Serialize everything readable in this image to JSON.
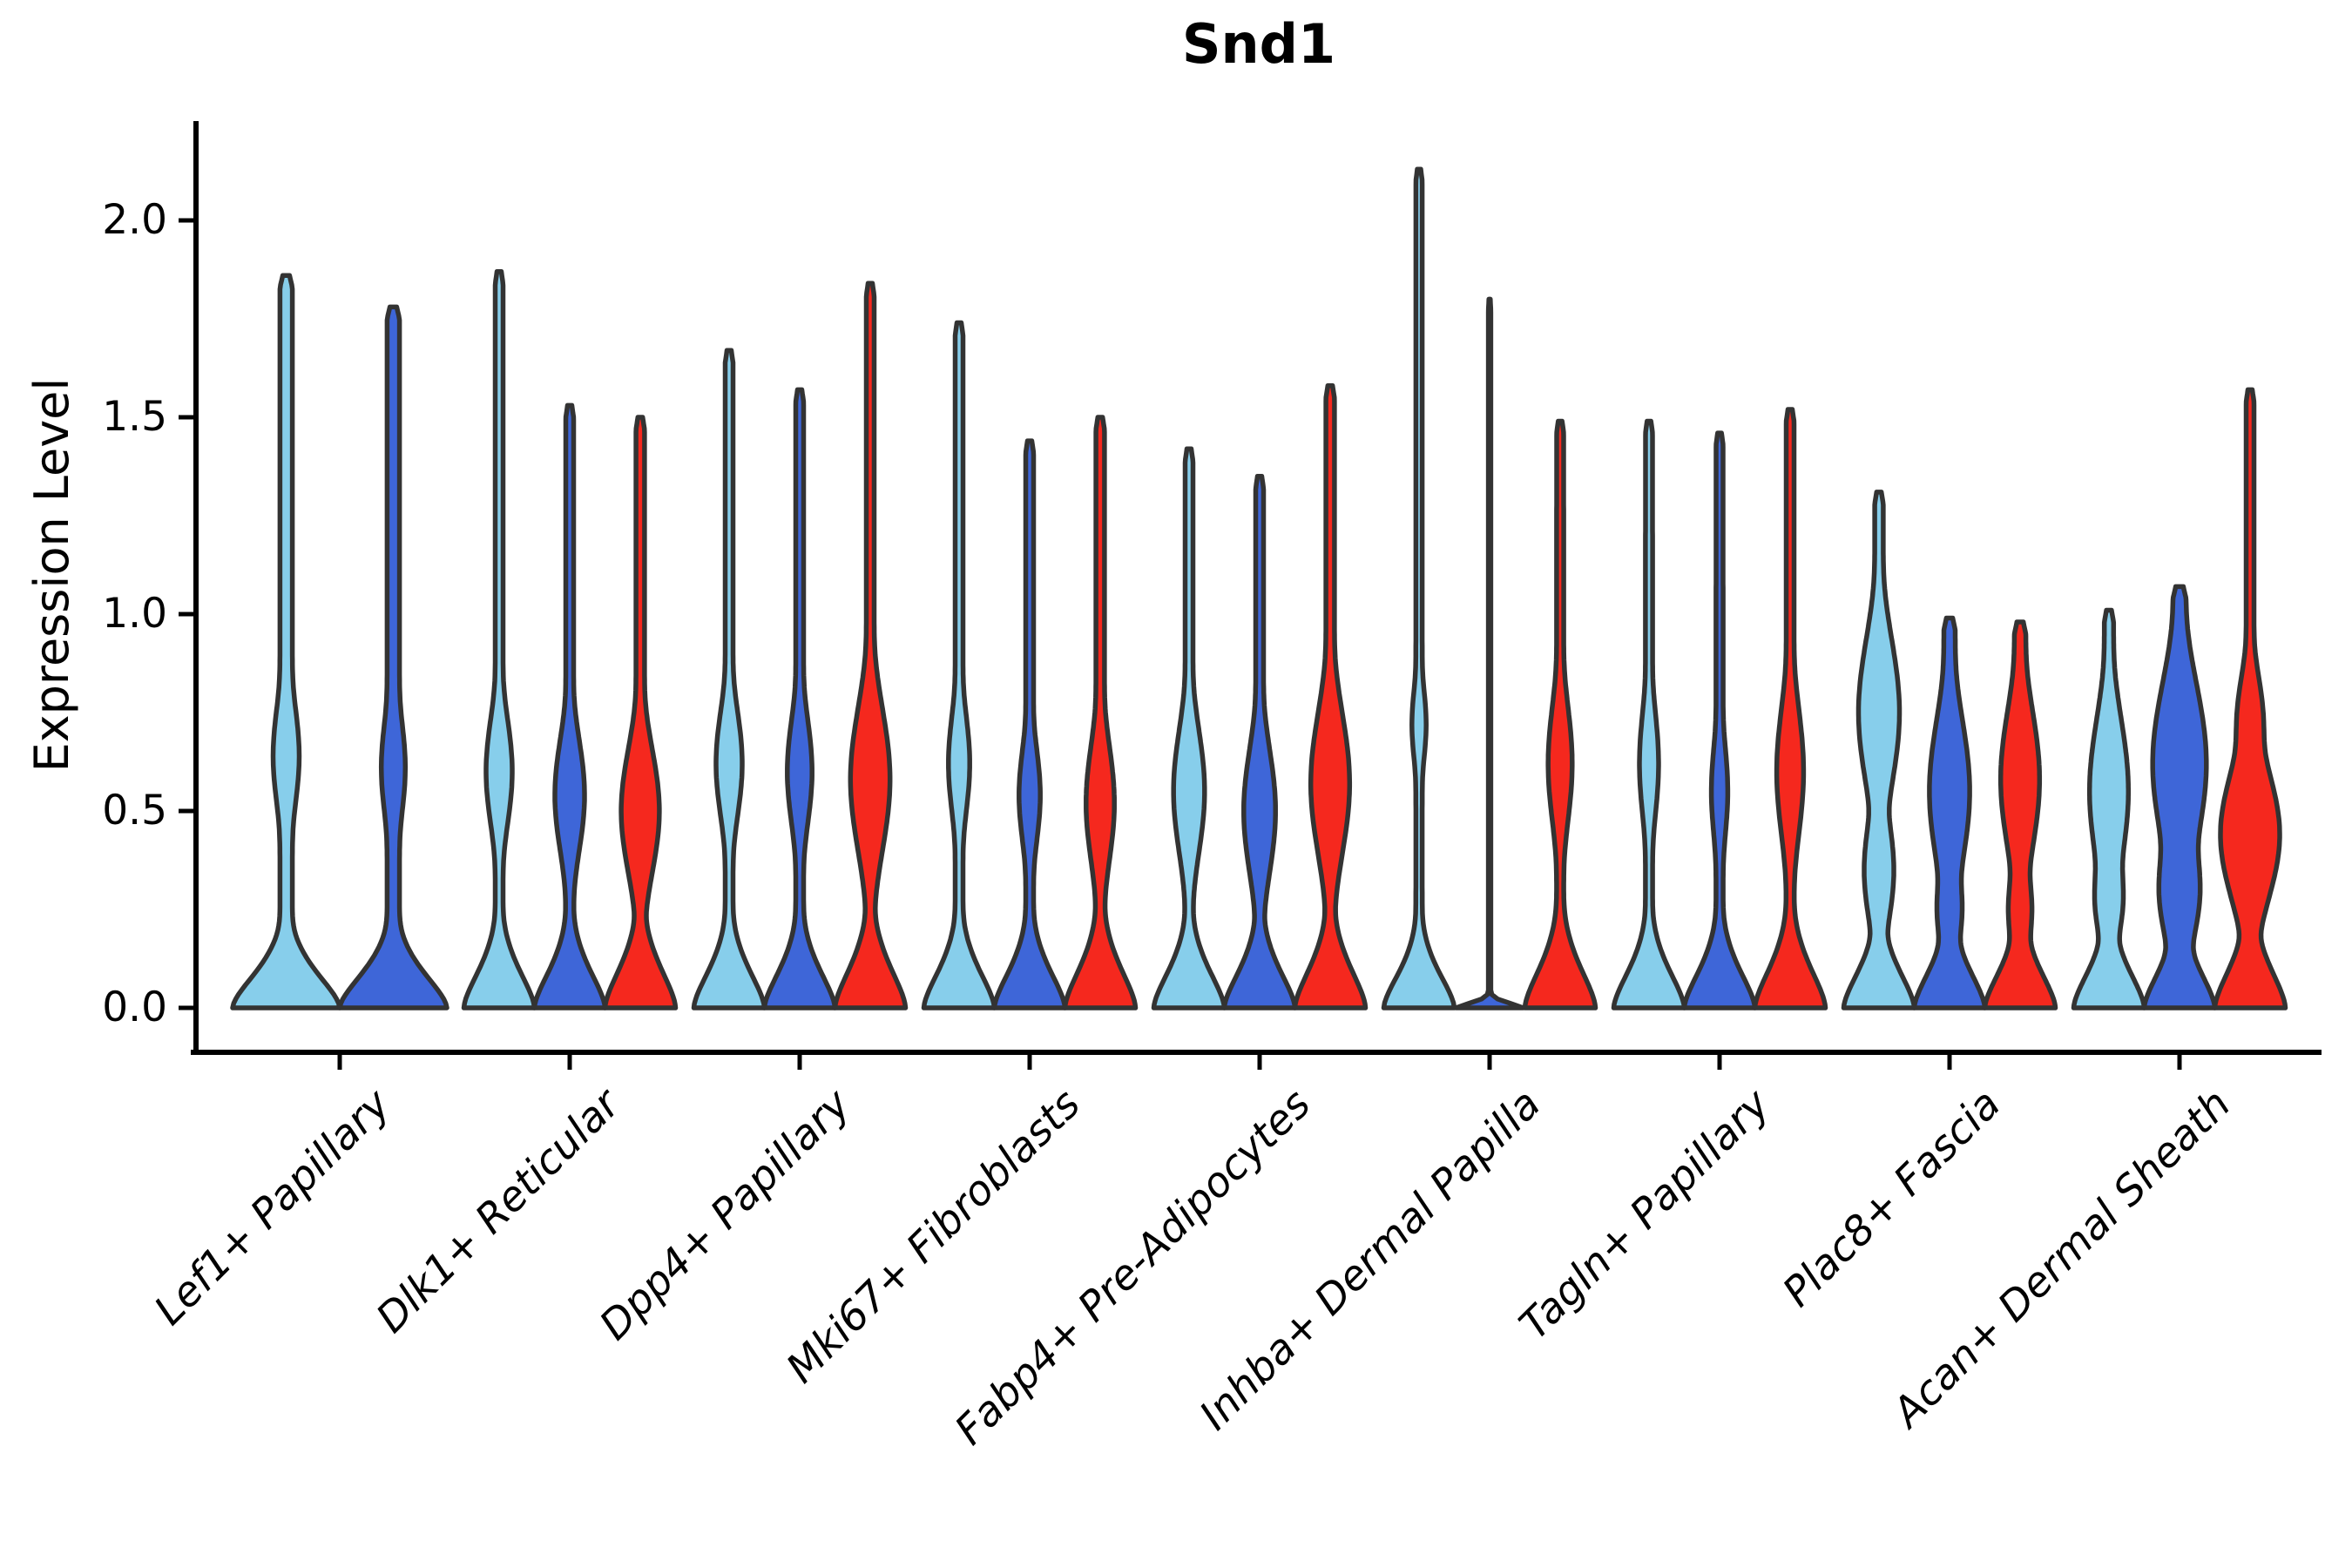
{
  "chart_data": {
    "type": "violin",
    "title": "Snd1",
    "ylabel": "Expression Level",
    "xlabel": "",
    "y_ticks": [
      0.0,
      0.5,
      1.0,
      1.5,
      2.0
    ],
    "y_tick_labels": [
      "0.0",
      "0.5",
      "1.0",
      "1.5",
      "2.0"
    ],
    "ylim": [
      -0.11,
      2.25
    ],
    "grid": false,
    "legend": "none",
    "categories": [
      "Lef1+ Papillary",
      "Dlk1+ Reticular",
      "Dpp4+ Papillary",
      "Mki67+ Fibroblasts",
      "Fabp4+ Pre-Adipocytes",
      "Inhba+ Dermal Papilla",
      "Tagln+ Papillary",
      "Plac8+ Fascia",
      "Acan+ Dermal Sheath"
    ],
    "split_colors": [
      "#87CEEB",
      "#3E66D8",
      "#F5281E"
    ],
    "outline_color": "#333333",
    "groups": [
      {
        "category": "Lef1+ Papillary",
        "violins": [
          {
            "split": 0,
            "max_expression": 1.86,
            "bulges": [
              [
                0.64,
                0.2,
                0.24
              ]
            ],
            "tail": 0.115,
            "base": [
              1,
              0.13
            ]
          },
          {
            "split": 1,
            "max_expression": 1.78,
            "bulges": [
              [
                0.61,
                0.19,
                0.22
              ]
            ],
            "tail": 0.115,
            "base": [
              1,
              0.13
            ]
          }
        ]
      },
      {
        "category": "Dlk1+ Reticular",
        "violins": [
          {
            "split": 0,
            "max_expression": 1.87,
            "bulges": [
              [
                0.6,
                0.2,
                0.37
              ]
            ],
            "tail": 0.11,
            "base": [
              1,
              0.14
            ]
          },
          {
            "split": 1,
            "max_expression": 1.53,
            "bulges": [
              [
                0.54,
                0.21,
                0.42
              ]
            ],
            "tail": 0.11,
            "base": [
              1,
              0.14
            ]
          },
          {
            "split": 2,
            "max_expression": 1.5,
            "bulges": [
              [
                0.5,
                0.23,
                0.54
              ]
            ],
            "tail": 0.12,
            "base": [
              1,
              0.15
            ]
          }
        ]
      },
      {
        "category": "Dpp4+ Papillary",
        "violins": [
          {
            "split": 0,
            "max_expression": 1.67,
            "bulges": [
              [
                0.62,
                0.2,
                0.37
              ]
            ],
            "tail": 0.11,
            "base": [
              1,
              0.14
            ]
          },
          {
            "split": 1,
            "max_expression": 1.57,
            "bulges": [
              [
                0.6,
                0.2,
                0.35
              ]
            ],
            "tail": 0.11,
            "base": [
              1,
              0.14
            ]
          },
          {
            "split": 2,
            "max_expression": 1.84,
            "bulges": [
              [
                0.58,
                0.26,
                0.56
              ]
            ],
            "tail": 0.11,
            "base": [
              1,
              0.15
            ]
          }
        ]
      },
      {
        "category": "Mki67+ Fibroblasts",
        "violins": [
          {
            "split": 0,
            "max_expression": 1.74,
            "bulges": [
              [
                0.62,
                0.19,
                0.3
              ]
            ],
            "tail": 0.11,
            "base": [
              1,
              0.14
            ]
          },
          {
            "split": 1,
            "max_expression": 1.44,
            "bulges": [
              [
                0.54,
                0.18,
                0.3
              ]
            ],
            "tail": 0.11,
            "base": [
              1,
              0.14
            ]
          },
          {
            "split": 2,
            "max_expression": 1.5,
            "bulges": [
              [
                0.52,
                0.22,
                0.4
              ]
            ],
            "tail": 0.12,
            "base": [
              1,
              0.15
            ]
          }
        ]
      },
      {
        "category": "Fabp4+ Pre-Adipocytes",
        "violins": [
          {
            "split": 0,
            "max_expression": 1.42,
            "bulges": [
              [
                0.55,
                0.23,
                0.44
              ]
            ],
            "tail": 0.11,
            "base": [
              1,
              0.14
            ]
          },
          {
            "split": 1,
            "max_expression": 1.35,
            "bulges": [
              [
                0.5,
                0.23,
                0.45
              ]
            ],
            "tail": 0.11,
            "base": [
              1,
              0.14
            ]
          },
          {
            "split": 2,
            "max_expression": 1.58,
            "bulges": [
              [
                0.57,
                0.26,
                0.55
              ]
            ],
            "tail": 0.12,
            "base": [
              1,
              0.15
            ]
          }
        ]
      },
      {
        "category": "Inhba+ Dermal Papilla",
        "violins": [
          {
            "split": 0,
            "max_expression": 2.13,
            "bulges": [
              [
                0.72,
                0.14,
                0.2
              ]
            ],
            "tail": 0.09,
            "base": [
              1,
              0.13
            ]
          },
          {
            "split": 1,
            "max_expression": 1.8,
            "bulges": [],
            "tail": 0.035,
            "base": [
              0.95,
              0.018
            ]
          },
          {
            "split": 2,
            "max_expression": 1.49,
            "bulges": [
              [
                0.62,
                0.22,
                0.34
              ]
            ],
            "tail": 0.1,
            "base": [
              1,
              0.15
            ]
          }
        ]
      },
      {
        "category": "Tagln+ Papillary",
        "violins": [
          {
            "split": 0,
            "max_expression": 1.49,
            "bulges": [
              [
                0.62,
                0.2,
                0.27
              ]
            ],
            "tail": 0.1,
            "base": [
              1,
              0.14
            ]
          },
          {
            "split": 1,
            "max_expression": 1.46,
            "bulges": [
              [
                0.55,
                0.18,
                0.23
              ]
            ],
            "tail": 0.1,
            "base": [
              1,
              0.14
            ]
          },
          {
            "split": 2,
            "max_expression": 1.52,
            "bulges": [
              [
                0.6,
                0.24,
                0.38
              ]
            ],
            "tail": 0.11,
            "base": [
              1,
              0.15
            ]
          }
        ]
      },
      {
        "category": "Plac8+ Fascia",
        "violins": [
          {
            "split": 0,
            "max_expression": 1.31,
            "bulges": [
              [
                0.75,
                0.27,
                0.58
              ],
              [
                0.35,
                0.2,
                0.42
              ]
            ],
            "tail": 0.12,
            "base": [
              1,
              0.14
            ]
          },
          {
            "split": 1,
            "max_expression": 0.99,
            "bulges": [
              [
                0.55,
                0.27,
                0.57
              ],
              [
                0.25,
                0.15,
                0.35
              ]
            ],
            "tail": 0.16,
            "base": [
              1,
              0.14
            ]
          },
          {
            "split": 2,
            "max_expression": 0.98,
            "bulges": [
              [
                0.58,
                0.26,
                0.55
              ],
              [
                0.25,
                0.15,
                0.33
              ]
            ],
            "tail": 0.16,
            "base": [
              1,
              0.14
            ]
          }
        ]
      },
      {
        "category": "Acan+ Dermal Sheath",
        "violins": [
          {
            "split": 0,
            "max_expression": 1.01,
            "bulges": [
              [
                0.55,
                0.27,
                0.55
              ],
              [
                0.28,
                0.16,
                0.4
              ]
            ],
            "tail": 0.13,
            "base": [
              1,
              0.14
            ]
          },
          {
            "split": 1,
            "max_expression": 1.07,
            "bulges": [
              [
                0.62,
                0.3,
                0.76
              ],
              [
                0.3,
                0.2,
                0.58
              ]
            ],
            "tail": 0.18,
            "base": [
              1,
              0.14
            ]
          },
          {
            "split": 2,
            "max_expression": 1.57,
            "bulges": [
              [
                0.44,
                0.24,
                0.84
              ],
              [
                0.72,
                0.18,
                0.38
              ]
            ],
            "tail": 0.11,
            "base": [
              1,
              0.15
            ]
          }
        ]
      }
    ]
  }
}
